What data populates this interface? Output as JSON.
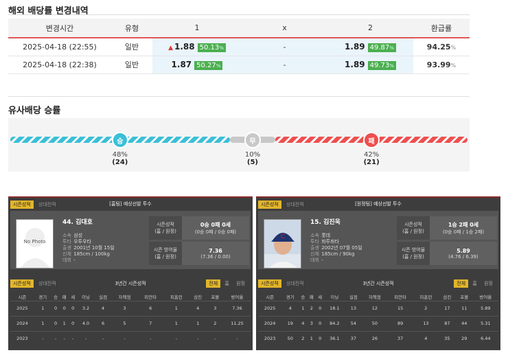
{
  "odds_change": {
    "title": "해외 배당률 변경내역",
    "headers": [
      "변경시간",
      "유형",
      "1",
      "x",
      "2",
      "환급률"
    ],
    "rows": [
      {
        "time": "2025-04-18 (22:55)",
        "type": "일반",
        "home": "1.88",
        "home_pct": "50.13",
        "draw": "-",
        "away": "1.89",
        "away_pct": "49.87",
        "payout": "94.25",
        "home_up": true
      },
      {
        "time": "2025-04-18 (22:38)",
        "type": "일반",
        "home": "1.87",
        "home_pct": "50.27",
        "draw": "-",
        "away": "1.89",
        "away_pct": "49.73",
        "payout": "93.99",
        "home_up": false
      }
    ],
    "pct_unit": "%"
  },
  "similar": {
    "title": "유사배당 승률",
    "win": {
      "label": "승",
      "pct": "48%",
      "count": "(24)",
      "value": 48
    },
    "draw": {
      "label": "무",
      "pct": "10%",
      "count": "(5)",
      "value": 10
    },
    "lose": {
      "label": "패",
      "pct": "42%",
      "count": "(21)",
      "value": 42
    }
  },
  "colors": {
    "win": "#3bbfd8",
    "draw": "#c8c8c8",
    "lose": "#ee4f4f"
  },
  "pitchers": [
    {
      "tab_on": "시즌성적",
      "tab_off": "상대전적",
      "title": "[홈팀] 예상선발 투수",
      "name": "44. 김대호",
      "photo_text": "No Photo",
      "info": [
        [
          "소속",
          "삼성"
        ],
        [
          "투타",
          "우투우타"
        ],
        [
          "출생",
          "2001년 10월 15일"
        ],
        [
          "신체",
          "185cm / 100kg"
        ],
        [
          "데뷔",
          "-"
        ]
      ],
      "season_label": "시즌성적",
      "season_sub": "(홈 / 원정)",
      "season_val": "0승 0패 0세",
      "season_val_sub": "(0승 0패 / 0승 0패)",
      "era_label": "시즌 방어율",
      "era_sub": "(홈 / 원정)",
      "era_val": "7.36",
      "era_val_sub": "(7.36 / 0.00)",
      "sub_tab_on": "시즌성적",
      "sub_tab_off": "상대전적",
      "sub_title": "3년간 시즌성적",
      "range_tabs": [
        "전체",
        "홈",
        "원정"
      ],
      "table_headers": [
        "시즌",
        "경기",
        "승",
        "패",
        "세",
        "이닝",
        "실점",
        "자책점",
        "피안타",
        "피홈런",
        "삼진",
        "포볼",
        "방어율"
      ],
      "table_rows": [
        [
          "2025",
          "1",
          "0",
          "0",
          "0",
          "3.2",
          "4",
          "3",
          "6",
          "1",
          "4",
          "3",
          "7.36"
        ],
        [
          "2024",
          "1",
          "0",
          "1",
          "0",
          "4.0",
          "6",
          "5",
          "7",
          "1",
          "1",
          "2",
          "11.25"
        ],
        [
          "2023",
          "-",
          "-",
          "-",
          "-",
          "-",
          "-",
          "-",
          "-",
          "-",
          "-",
          "-",
          "-"
        ]
      ]
    },
    {
      "tab_on": "시즌성적",
      "tab_off": "상대전적",
      "title": "[원정팀] 예상선발 투수",
      "name": "15. 김진욱",
      "photo_text": "",
      "info": [
        [
          "소속",
          "롯데"
        ],
        [
          "투타",
          "좌투좌타"
        ],
        [
          "출생",
          "2002년 07월 05일"
        ],
        [
          "신체",
          "185cm / 90kg"
        ],
        [
          "데뷔",
          "-"
        ]
      ],
      "season_label": "시즌성적",
      "season_sub": "(홈 / 원정)",
      "season_val": "1승 2패 0세",
      "season_val_sub": "(0승 0패 / 1승 2패)",
      "era_label": "시즌 방어율",
      "era_sub": "(홈 / 원정)",
      "era_val": "5.89",
      "era_val_sub": "(4.76 / 6.39)",
      "sub_tab_on": "시즌성적",
      "sub_tab_off": "상대전적",
      "sub_title": "3년간 시즌성적",
      "range_tabs": [
        "전체",
        "홈",
        "원정"
      ],
      "table_headers": [
        "시즌",
        "경기",
        "승",
        "패",
        "세",
        "이닝",
        "실점",
        "자책점",
        "피안타",
        "피홈런",
        "삼진",
        "포볼",
        "방어율"
      ],
      "table_rows": [
        [
          "2025",
          "4",
          "1",
          "2",
          "0",
          "18.1",
          "13",
          "12",
          "15",
          "2",
          "17",
          "11",
          "5.89"
        ],
        [
          "2024",
          "19",
          "4",
          "3",
          "0",
          "84.2",
          "54",
          "50",
          "89",
          "13",
          "87",
          "44",
          "5.31"
        ],
        [
          "2023",
          "50",
          "2",
          "1",
          "0",
          "36.1",
          "37",
          "26",
          "37",
          "4",
          "35",
          "29",
          "6.44"
        ]
      ]
    }
  ]
}
